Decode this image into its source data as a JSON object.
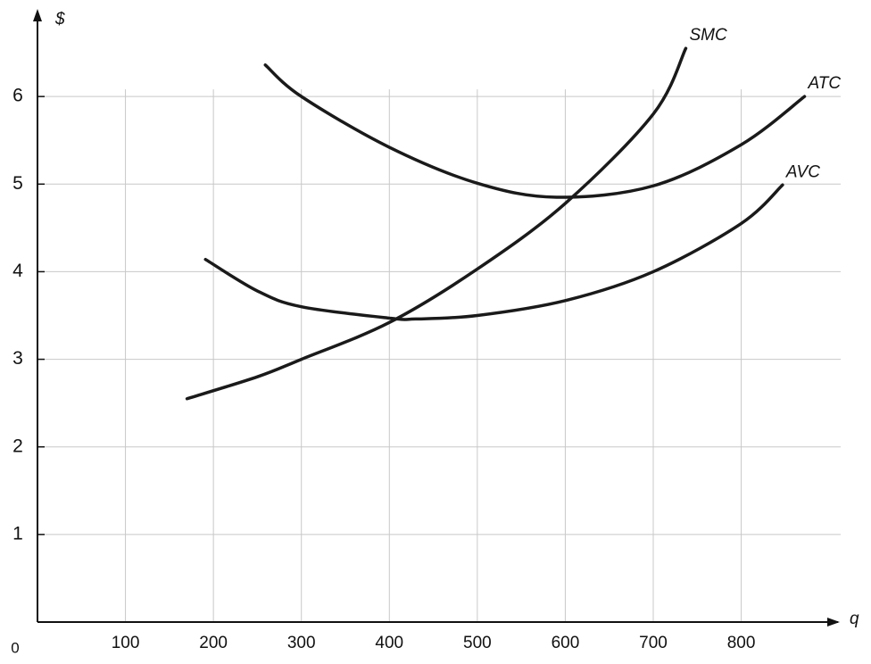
{
  "chart_data": {
    "type": "line",
    "y_label": "$",
    "x_label": "q",
    "xlim": [
      0,
      910
    ],
    "ylim": [
      0,
      7
    ],
    "xticks": [
      0,
      100,
      200,
      300,
      400,
      500,
      600,
      700,
      800
    ],
    "yticks": [
      1,
      2,
      3,
      4,
      5,
      6
    ],
    "grid": true,
    "series": [
      {
        "name": "SMC",
        "color": "#1a1a1a",
        "x": [
          170,
          250,
          300,
          400,
          500,
          600,
          700,
          737
        ],
        "values": [
          2.55,
          2.8,
          3.0,
          3.42,
          4.03,
          4.78,
          5.8,
          6.55
        ]
      },
      {
        "name": "ATC",
        "color": "#1a1a1a",
        "x": [
          259,
          300,
          400,
          500,
          590,
          700,
          800,
          872
        ],
        "values": [
          6.36,
          6.0,
          5.42,
          5.01,
          4.85,
          4.98,
          5.45,
          6.0
        ]
      },
      {
        "name": "AVC",
        "color": "#1a1a1a",
        "x": [
          191,
          250,
          300,
          400,
          430,
          500,
          600,
          700,
          800,
          847
        ],
        "values": [
          4.14,
          3.78,
          3.6,
          3.47,
          3.46,
          3.5,
          3.67,
          4.0,
          4.55,
          4.99
        ]
      }
    ]
  }
}
